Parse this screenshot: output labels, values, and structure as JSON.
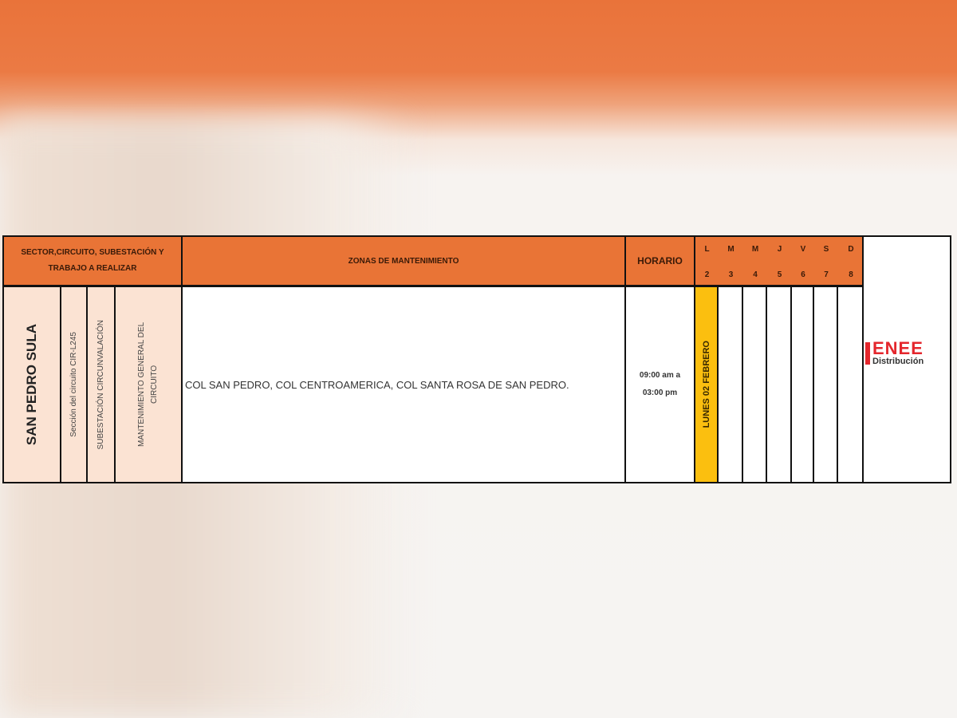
{
  "header": {
    "sector_group": "SECTOR,CIRCUITO, SUBESTACIÓN Y TRABAJO A REALIZAR",
    "zonas": "ZONAS DE MANTENIMIENTO",
    "horario": "HORARIO",
    "days": [
      {
        "letter": "L",
        "num": "2"
      },
      {
        "letter": "M",
        "num": "3"
      },
      {
        "letter": "M",
        "num": "4"
      },
      {
        "letter": "J",
        "num": "5"
      },
      {
        "letter": "V",
        "num": "6"
      },
      {
        "letter": "S",
        "num": "7"
      },
      {
        "letter": "D",
        "num": "8"
      }
    ]
  },
  "row": {
    "sector": "SAN PEDRO SULA",
    "circuito": "Sección del circuito CIR-L245",
    "subestacion": "SUBESTACIÓN CIRCUNVALACIÓN",
    "trabajo": "MANTENIMIENTO GENERAL DEL CIRCUITO",
    "zonas": "COL SAN PEDRO, COL CENTROAMERICA, COL SANTA ROSA DE SAN PEDRO.",
    "horario_line1": "09:00 am a",
    "horario_line2": "03:00 pm",
    "day_label": "LUNES 02 FEBRERO"
  },
  "logo": {
    "brand": "ENEE",
    "sub": "Distribución"
  },
  "colors": {
    "header": "#e97436",
    "highlight": "#fbbf0f",
    "peach": "#fbe3d3",
    "logo": "#e4262c"
  }
}
